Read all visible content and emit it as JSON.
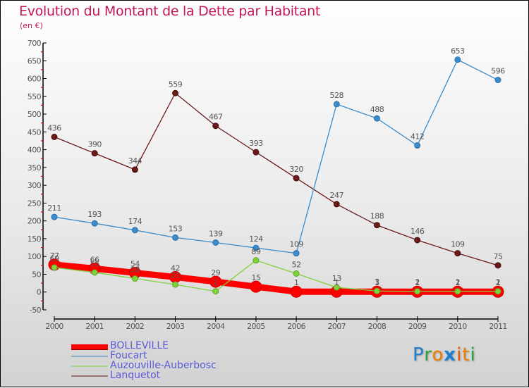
{
  "header": {
    "title": "Evolution du Montant de la Dette par Habitant",
    "subtitle": "(en €)"
  },
  "logo": {
    "text": "Proxiti",
    "letters": [
      {
        "ch": "P",
        "color": "#1e7fd0"
      },
      {
        "ch": "r",
        "color": "#2fa03a"
      },
      {
        "ch": "o",
        "color": "#f07d00"
      },
      {
        "ch": "x",
        "color": "#1e7fd0"
      },
      {
        "ch": "i",
        "color": "#e55a00"
      },
      {
        "ch": "t",
        "color": "#f07d00"
      },
      {
        "ch": "i",
        "color": "#2fa03a"
      }
    ]
  },
  "chart_data": {
    "type": "line",
    "title": "Evolution du Montant de la Dette par Habitant",
    "subtitle": "(en €)",
    "xlabel": "",
    "ylabel": "",
    "x": [
      "2000",
      "2001",
      "2002",
      "2003",
      "2004",
      "2005",
      "2006",
      "2007",
      "2008",
      "2009",
      "2010",
      "2011"
    ],
    "ylim": [
      -50,
      700
    ],
    "yticks": [
      -50,
      0,
      50,
      100,
      150,
      200,
      250,
      300,
      350,
      400,
      450,
      500,
      550,
      600,
      650,
      700
    ],
    "grid": false,
    "legend_position": "bottom-left",
    "series": [
      {
        "name": "BOLLEVILLE",
        "color": "#ff0000",
        "values": [
          77,
          66,
          54,
          42,
          29,
          15,
          1,
          1,
          1,
          1,
          1,
          1
        ],
        "labels": [
          "77",
          "66",
          "54",
          "42",
          "29",
          "15",
          "1",
          "1",
          "1",
          "1",
          "1",
          "1"
        ]
      },
      {
        "name": "Foucart",
        "color": "#3a8ccc",
        "values": [
          211,
          193,
          174,
          153,
          139,
          124,
          109,
          528,
          488,
          412,
          653,
          596
        ],
        "labels": [
          "211",
          "193",
          "174",
          "153",
          "139",
          "124",
          "109",
          "528",
          "488",
          "412",
          "653",
          "596"
        ]
      },
      {
        "name": "Auzouville-Auberbosc",
        "color": "#7fd23c",
        "values": [
          69,
          55,
          38,
          21,
          2,
          89,
          52,
          13,
          3,
          2,
          2,
          2
        ],
        "labels": [
          "69",
          "55",
          "38",
          "21",
          "2",
          "89",
          "52",
          "13",
          "3",
          "2",
          "2",
          "2"
        ]
      },
      {
        "name": "Lanquetot",
        "color": "#6b1a1a",
        "values": [
          436,
          390,
          344,
          559,
          467,
          393,
          320,
          247,
          188,
          146,
          109,
          75
        ],
        "labels": [
          "436",
          "390",
          "344",
          "559",
          "467",
          "393",
          "320",
          "247",
          "188",
          "146",
          "109",
          "75"
        ]
      }
    ]
  },
  "legend": {
    "items": [
      {
        "label": "BOLLEVILLE",
        "color": "#ff0000"
      },
      {
        "label": "Foucart",
        "color": "#8ab0cc"
      },
      {
        "label": "Auzouville-Auberbosc",
        "color": "#a6d88a"
      },
      {
        "label": "Lanquetot",
        "color": "#9c7070"
      }
    ]
  }
}
